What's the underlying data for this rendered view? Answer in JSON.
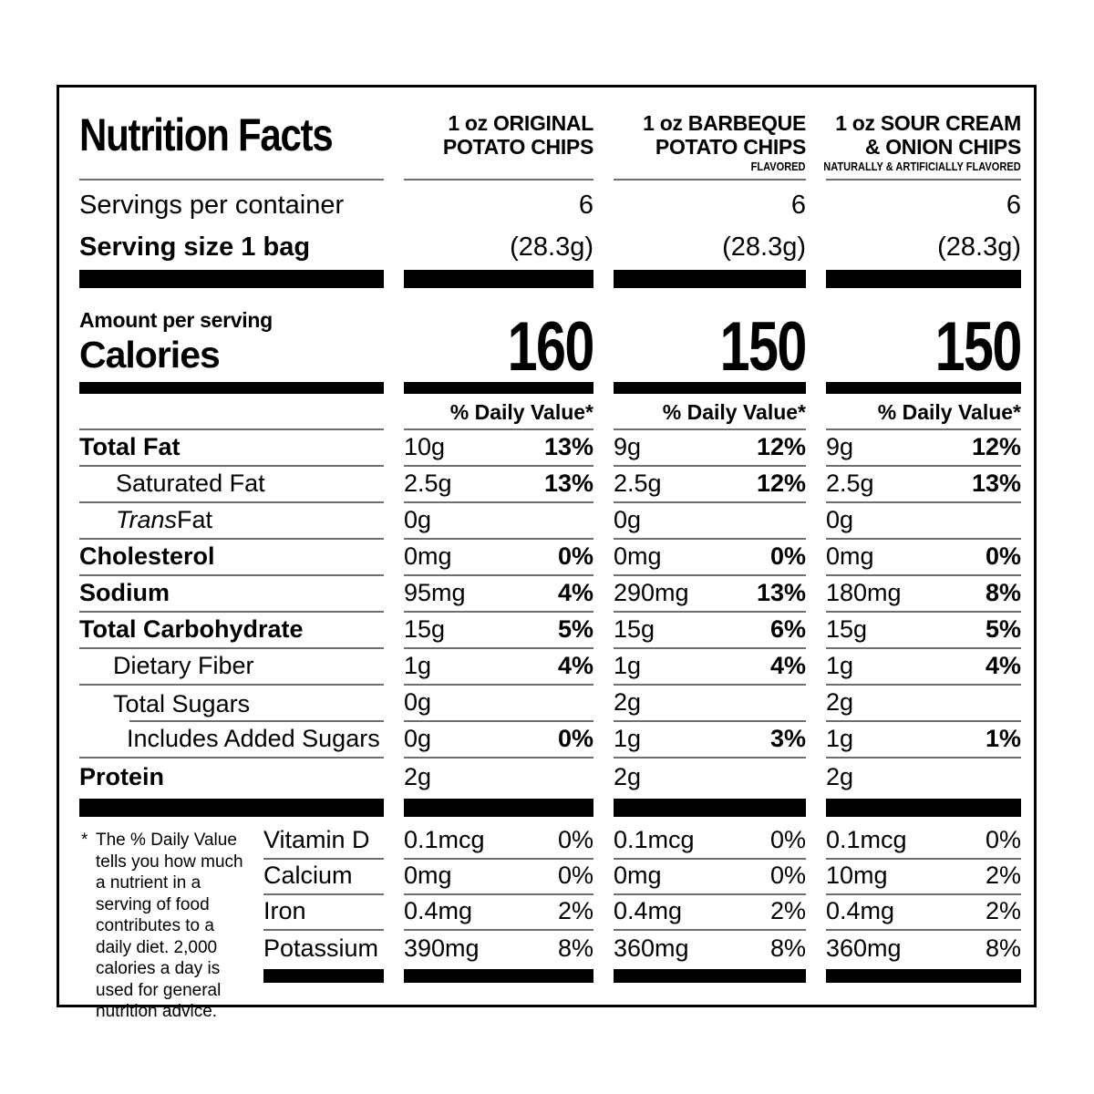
{
  "title": "Nutrition Facts",
  "colors": {
    "ink": "#000000",
    "paper": "#ffffff",
    "hairline": "#6e6e6e"
  },
  "labels": {
    "servings_per_container": "Servings per container",
    "serving_size": "Serving size 1 bag",
    "amount_per_serving": "Amount per serving",
    "calories": "Calories"
  },
  "products": [
    {
      "name_line1": "1 oz ORIGINAL",
      "name_line2": "POTATO CHIPS",
      "flavor_note": "",
      "servings_per_container": "6",
      "serving_size": "(28.3g)",
      "calories": "160",
      "daily_value_header": "% Daily Value*"
    },
    {
      "name_line1": "1 oz BARBEQUE",
      "name_line2": "POTATO CHIPS",
      "flavor_note": "FLAVORED",
      "servings_per_container": "6",
      "serving_size": "(28.3g)",
      "calories": "150",
      "daily_value_header": "% Daily Value*"
    },
    {
      "name_line1": "1 oz SOUR CREAM",
      "name_line2": "& ONION CHIPS",
      "flavor_note": "NATURALLY & ARTIFICIALLY FLAVORED",
      "servings_per_container": "6",
      "serving_size": "(28.3g)",
      "calories": "150",
      "daily_value_header": "% Daily Value*"
    }
  ],
  "nutrients": [
    {
      "label": "Total Fat",
      "values": [
        {
          "amount": "10g",
          "dv": "13%"
        },
        {
          "amount": "9g",
          "dv": "12%"
        },
        {
          "amount": "9g",
          "dv": "12%"
        }
      ]
    },
    {
      "label": "Saturated Fat",
      "values": [
        {
          "amount": "2.5g",
          "dv": "13%"
        },
        {
          "amount": "2.5g",
          "dv": "12%"
        },
        {
          "amount": "2.5g",
          "dv": "13%"
        }
      ]
    },
    {
      "label_italic": "Trans",
      "label": " Fat",
      "values": [
        {
          "amount": "0g",
          "dv": ""
        },
        {
          "amount": "0g",
          "dv": ""
        },
        {
          "amount": "0g",
          "dv": ""
        }
      ]
    },
    {
      "label": "Cholesterol",
      "values": [
        {
          "amount": "0mg",
          "dv": "0%"
        },
        {
          "amount": "0mg",
          "dv": "0%"
        },
        {
          "amount": "0mg",
          "dv": "0%"
        }
      ]
    },
    {
      "label": "Sodium",
      "values": [
        {
          "amount": "95mg",
          "dv": "4%"
        },
        {
          "amount": "290mg",
          "dv": "13%"
        },
        {
          "amount": "180mg",
          "dv": "8%"
        }
      ]
    },
    {
      "label": "Total Carbohydrate",
      "values": [
        {
          "amount": "15g",
          "dv": "5%"
        },
        {
          "amount": "15g",
          "dv": "6%"
        },
        {
          "amount": "15g",
          "dv": "5%"
        }
      ]
    },
    {
      "label": "Dietary Fiber",
      "values": [
        {
          "amount": "1g",
          "dv": "4%"
        },
        {
          "amount": "1g",
          "dv": "4%"
        },
        {
          "amount": "1g",
          "dv": "4%"
        }
      ]
    },
    {
      "label": "Total Sugars",
      "values": [
        {
          "amount": "0g",
          "dv": ""
        },
        {
          "amount": "2g",
          "dv": ""
        },
        {
          "amount": "2g",
          "dv": ""
        }
      ]
    },
    {
      "label": "Includes Added Sugars",
      "values": [
        {
          "amount": "0g",
          "dv": "0%"
        },
        {
          "amount": "1g",
          "dv": "3%"
        },
        {
          "amount": "1g",
          "dv": "1%"
        }
      ]
    },
    {
      "label": "Protein",
      "values": [
        {
          "amount": "2g",
          "dv": ""
        },
        {
          "amount": "2g",
          "dv": ""
        },
        {
          "amount": "2g",
          "dv": ""
        }
      ]
    }
  ],
  "vitamins": [
    {
      "label": "Vitamin D",
      "values": [
        {
          "amount": "0.1mcg",
          "dv": "0%"
        },
        {
          "amount": "0.1mcg",
          "dv": "0%"
        },
        {
          "amount": "0.1mcg",
          "dv": "0%"
        }
      ]
    },
    {
      "label": "Calcium",
      "values": [
        {
          "amount": "0mg",
          "dv": "0%"
        },
        {
          "amount": "0mg",
          "dv": "0%"
        },
        {
          "amount": "10mg",
          "dv": "2%"
        }
      ]
    },
    {
      "label": "Iron",
      "values": [
        {
          "amount": "0.4mg",
          "dv": "2%"
        },
        {
          "amount": "0.4mg",
          "dv": "2%"
        },
        {
          "amount": "0.4mg",
          "dv": "2%"
        }
      ]
    },
    {
      "label": "Potassium",
      "values": [
        {
          "amount": "390mg",
          "dv": "8%"
        },
        {
          "amount": "360mg",
          "dv": "8%"
        },
        {
          "amount": "360mg",
          "dv": "8%"
        }
      ]
    }
  ],
  "footnote": {
    "marker": "*",
    "text": "The % Daily Value tells you how much a nutrient in a serving of food contributes to a daily diet. 2,000 calories a day is used for general nutrition advice."
  }
}
